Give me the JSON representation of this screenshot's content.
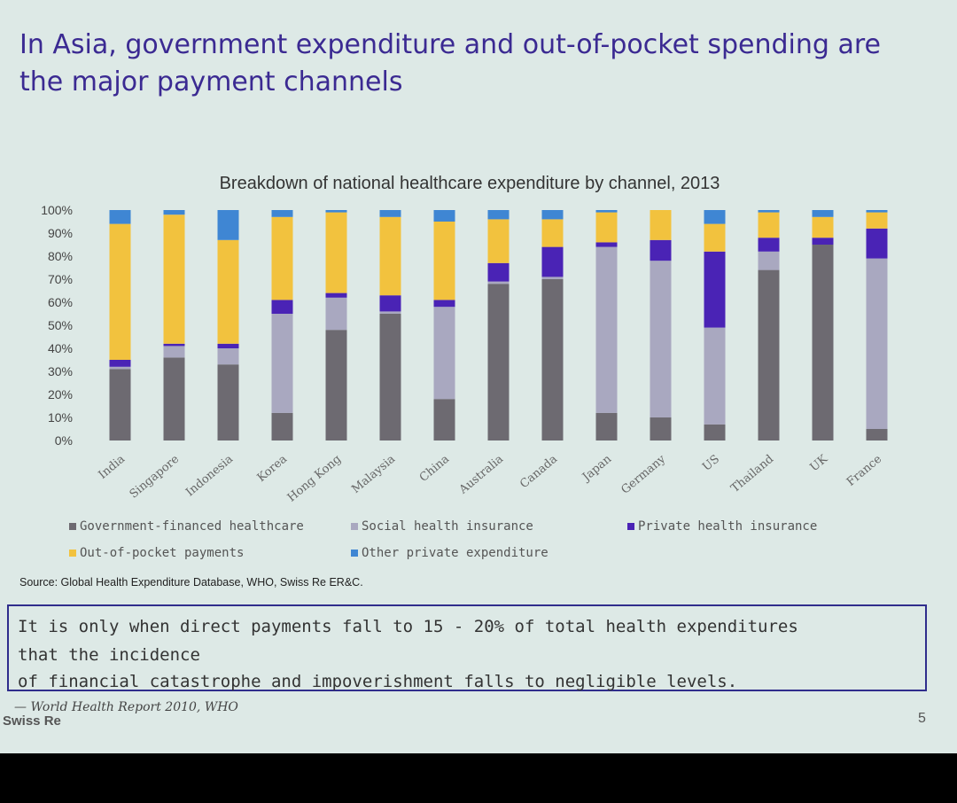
{
  "slide": {
    "title": "In Asia, government expenditure and out-of-pocket spending are the major payment channels",
    "source": "Source: Global Health Expenditure Database, WHO, Swiss Re ER&C.",
    "quote": {
      "line1": "It is only when direct payments fall to 15 - 20% of total health expenditures",
      "line2": "that the incidence",
      "line3": "of financial catastrophe and impoverishment falls to negligible levels."
    },
    "attribution": "— World Health Report 2010, WHO",
    "brand": "Swiss Re",
    "page_number": "5"
  },
  "chart_data": {
    "type": "bar",
    "stacked": true,
    "title": "Breakdown of national healthcare expenditure by channel, 2013",
    "categories": [
      "India",
      "Singapore",
      "Indonesia",
      "Korea",
      "Hong Kong",
      "Malaysia",
      "China",
      "Australia",
      "Canada",
      "Japan",
      "Germany",
      "US",
      "Thailand",
      "UK",
      "France"
    ],
    "ylim": [
      0,
      100
    ],
    "yticks": [
      "0%",
      "10%",
      "20%",
      "30%",
      "40%",
      "50%",
      "60%",
      "70%",
      "80%",
      "90%",
      "100%"
    ],
    "grid": false,
    "legend_position": "bottom",
    "colors": {
      "gov": "#6d6a71",
      "social": "#a9a8c0",
      "private": "#4a23b5",
      "oop": "#f2c23e",
      "other": "#3f86d3"
    },
    "series": [
      {
        "name": "Government-financed healthcare",
        "values": [
          31,
          36,
          33,
          12,
          48,
          55,
          18,
          68,
          70,
          12,
          10,
          7,
          74,
          85,
          5
        ]
      },
      {
        "name": "Social health insurance",
        "values": [
          1,
          5,
          7,
          43,
          14,
          1,
          40,
          1,
          1,
          72,
          68,
          42,
          8,
          0,
          74
        ]
      },
      {
        "name": "Private health insurance",
        "values": [
          3,
          1,
          2,
          6,
          2,
          7,
          3,
          8,
          13,
          2,
          9,
          33,
          6,
          3,
          13
        ]
      },
      {
        "name": "Out-of-pocket payments",
        "values": [
          59,
          56,
          45,
          36,
          35,
          34,
          34,
          19,
          12,
          13,
          13,
          12,
          11,
          9,
          7
        ]
      },
      {
        "name": "Other private expenditure",
        "values": [
          6,
          2,
          13,
          3,
          1,
          3,
          5,
          4,
          4,
          1,
          0,
          6,
          1,
          3,
          1
        ]
      }
    ]
  }
}
